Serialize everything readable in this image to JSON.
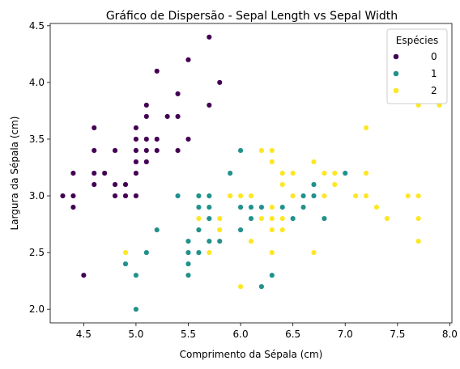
{
  "chart_data": {
    "type": "scatter",
    "title": "Gráfico de Dispersão - Sepal Length vs Sepal Width",
    "xlabel": "Comprimento da Sépala (cm)",
    "ylabel": "Largura da Sépala (cm)",
    "xlim": [
      4.18,
      8.02
    ],
    "ylim": [
      1.88,
      4.52
    ],
    "xticks": [
      4.5,
      5.0,
      5.5,
      6.0,
      6.5,
      7.0,
      7.5,
      8.0
    ],
    "xtick_labels": [
      "4.5",
      "5.0",
      "5.5",
      "6.0",
      "6.5",
      "7.0",
      "7.5",
      "8.0"
    ],
    "yticks": [
      2.0,
      2.5,
      3.0,
      3.5,
      4.0,
      4.5
    ],
    "ytick_labels": [
      "2.0",
      "2.5",
      "3.0",
      "3.5",
      "4.0",
      "4.5"
    ],
    "grid": false,
    "legend": {
      "title": "Espécies",
      "placement": "top-right"
    },
    "series": [
      {
        "name": "0",
        "color": "#440154",
        "points": [
          [
            4.3,
            3.0
          ],
          [
            4.4,
            2.9
          ],
          [
            4.4,
            3.0
          ],
          [
            4.4,
            3.2
          ],
          [
            4.5,
            2.3
          ],
          [
            4.6,
            3.1
          ],
          [
            4.6,
            3.2
          ],
          [
            4.6,
            3.4
          ],
          [
            4.6,
            3.6
          ],
          [
            4.7,
            3.2
          ],
          [
            4.8,
            3.0
          ],
          [
            4.8,
            3.1
          ],
          [
            4.8,
            3.4
          ],
          [
            4.9,
            3.0
          ],
          [
            4.9,
            3.1
          ],
          [
            5.0,
            3.0
          ],
          [
            5.0,
            3.2
          ],
          [
            5.0,
            3.3
          ],
          [
            5.0,
            3.4
          ],
          [
            5.0,
            3.5
          ],
          [
            5.0,
            3.6
          ],
          [
            5.1,
            3.3
          ],
          [
            5.1,
            3.4
          ],
          [
            5.1,
            3.5
          ],
          [
            5.1,
            3.7
          ],
          [
            5.1,
            3.8
          ],
          [
            5.2,
            3.4
          ],
          [
            5.2,
            3.5
          ],
          [
            5.2,
            4.1
          ],
          [
            5.3,
            3.7
          ],
          [
            5.4,
            3.4
          ],
          [
            5.4,
            3.7
          ],
          [
            5.4,
            3.9
          ],
          [
            5.5,
            3.5
          ],
          [
            5.5,
            4.2
          ],
          [
            5.7,
            3.8
          ],
          [
            5.7,
            4.4
          ],
          [
            5.8,
            4.0
          ]
        ]
      },
      {
        "name": "1",
        "color": "#21918c",
        "points": [
          [
            4.9,
            2.4
          ],
          [
            5.0,
            2.0
          ],
          [
            5.0,
            2.3
          ],
          [
            5.1,
            2.5
          ],
          [
            5.2,
            2.7
          ],
          [
            5.4,
            3.0
          ],
          [
            5.5,
            2.3
          ],
          [
            5.5,
            2.4
          ],
          [
            5.5,
            2.5
          ],
          [
            5.5,
            2.6
          ],
          [
            5.6,
            2.5
          ],
          [
            5.6,
            2.7
          ],
          [
            5.6,
            2.9
          ],
          [
            5.6,
            3.0
          ],
          [
            5.7,
            2.6
          ],
          [
            5.7,
            2.8
          ],
          [
            5.7,
            2.9
          ],
          [
            5.7,
            3.0
          ],
          [
            5.8,
            2.6
          ],
          [
            5.8,
            2.7
          ],
          [
            5.9,
            3.0
          ],
          [
            5.9,
            3.2
          ],
          [
            6.0,
            2.2
          ],
          [
            6.0,
            2.7
          ],
          [
            6.0,
            2.9
          ],
          [
            6.0,
            3.4
          ],
          [
            6.1,
            2.8
          ],
          [
            6.1,
            2.9
          ],
          [
            6.1,
            3.0
          ],
          [
            6.2,
            2.2
          ],
          [
            6.2,
            2.9
          ],
          [
            6.3,
            2.3
          ],
          [
            6.3,
            2.5
          ],
          [
            6.3,
            3.3
          ],
          [
            6.4,
            2.9
          ],
          [
            6.4,
            3.2
          ],
          [
            6.5,
            2.8
          ],
          [
            6.6,
            2.9
          ],
          [
            6.6,
            3.0
          ],
          [
            6.7,
            3.0
          ],
          [
            6.7,
            3.1
          ],
          [
            6.8,
            2.8
          ],
          [
            7.0,
            3.2
          ]
        ]
      },
      {
        "name": "2",
        "color": "#fde725",
        "points": [
          [
            4.9,
            2.5
          ],
          [
            5.6,
            2.8
          ],
          [
            5.7,
            2.5
          ],
          [
            5.8,
            2.7
          ],
          [
            5.8,
            2.8
          ],
          [
            5.9,
            3.0
          ],
          [
            6.0,
            2.2
          ],
          [
            6.0,
            3.0
          ],
          [
            6.1,
            2.6
          ],
          [
            6.1,
            3.0
          ],
          [
            6.2,
            2.8
          ],
          [
            6.2,
            3.4
          ],
          [
            6.3,
            2.5
          ],
          [
            6.3,
            2.7
          ],
          [
            6.3,
            2.8
          ],
          [
            6.3,
            2.9
          ],
          [
            6.3,
            3.3
          ],
          [
            6.3,
            3.4
          ],
          [
            6.4,
            2.7
          ],
          [
            6.4,
            2.8
          ],
          [
            6.4,
            3.1
          ],
          [
            6.4,
            3.2
          ],
          [
            6.5,
            3.0
          ],
          [
            6.5,
            3.2
          ],
          [
            6.7,
            2.5
          ],
          [
            6.7,
            3.3
          ],
          [
            6.8,
            3.0
          ],
          [
            6.8,
            3.2
          ],
          [
            6.9,
            3.1
          ],
          [
            6.9,
            3.2
          ],
          [
            7.1,
            3.0
          ],
          [
            7.2,
            3.0
          ],
          [
            7.2,
            3.2
          ],
          [
            7.2,
            3.6
          ],
          [
            7.3,
            2.9
          ],
          [
            7.4,
            2.8
          ],
          [
            7.6,
            3.0
          ],
          [
            7.7,
            2.6
          ],
          [
            7.7,
            2.8
          ],
          [
            7.7,
            3.0
          ],
          [
            7.7,
            3.8
          ],
          [
            7.9,
            3.8
          ]
        ]
      }
    ]
  }
}
